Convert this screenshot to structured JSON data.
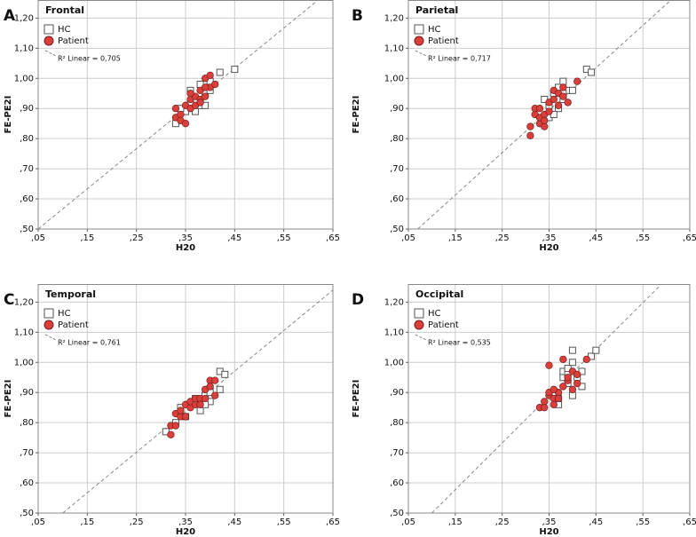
{
  "chart_data": [
    {
      "type": "scatter",
      "panel_label": "A",
      "title": "Frontal",
      "x_label": "H20",
      "y_label": "FE-PE2I",
      "annotation": "R² Linear = 0,705",
      "xlim": [
        0.05,
        0.65
      ],
      "ylim": [
        0.5,
        1.26
      ],
      "xticks": [
        {
          "value": 0.05,
          "label": ",05"
        },
        {
          "value": 0.15,
          "label": ",15"
        },
        {
          "value": 0.25,
          "label": ",25"
        },
        {
          "value": 0.35,
          "label": ",35"
        },
        {
          "value": 0.45,
          "label": ",45"
        },
        {
          "value": 0.55,
          "label": ",55"
        },
        {
          "value": 0.65,
          "label": ",65"
        }
      ],
      "yticks": [
        {
          "value": 0.5,
          "label": ",50"
        },
        {
          "value": 0.6,
          "label": ",60"
        },
        {
          "value": 0.7,
          "label": ",70"
        },
        {
          "value": 0.8,
          "label": ",80"
        },
        {
          "value": 0.9,
          "label": ",90"
        },
        {
          "value": 1.0,
          "label": "1,00"
        },
        {
          "value": 1.1,
          "label": "1,10"
        },
        {
          "value": 1.2,
          "label": "1,20"
        }
      ],
      "grid": true,
      "fit": {
        "x": [
          0.05,
          0.62
        ],
        "values": [
          0.5,
          1.26
        ]
      },
      "series": [
        {
          "name": "HC",
          "color": "#ffffff",
          "x": [
            0.33,
            0.35,
            0.36,
            0.37,
            0.37,
            0.38,
            0.38,
            0.39,
            0.39,
            0.4,
            0.4,
            0.42,
            0.45,
            0.36,
            0.34
          ],
          "values": [
            0.85,
            0.89,
            0.96,
            0.89,
            0.93,
            0.98,
            0.91,
            0.91,
            0.95,
            0.96,
            0.99,
            1.02,
            1.03,
            0.92,
            0.9
          ]
        },
        {
          "name": "Patient",
          "color": "#d9403c",
          "x": [
            0.33,
            0.33,
            0.34,
            0.34,
            0.35,
            0.35,
            0.36,
            0.36,
            0.37,
            0.37,
            0.38,
            0.38,
            0.39,
            0.39,
            0.4,
            0.4,
            0.41,
            0.38,
            0.36,
            0.39
          ],
          "values": [
            0.87,
            0.9,
            0.88,
            0.86,
            0.91,
            0.85,
            0.93,
            0.9,
            0.94,
            0.91,
            0.93,
            0.96,
            0.94,
            1.0,
            1.01,
            0.97,
            0.98,
            0.92,
            0.95,
            0.97
          ]
        }
      ]
    },
    {
      "type": "scatter",
      "panel_label": "B",
      "title": "Parietal",
      "x_label": "H20",
      "y_label": "FE-PE2I",
      "annotation": "R² Linear = 0,717",
      "xlim": [
        0.05,
        0.65
      ],
      "ylim": [
        0.5,
        1.26
      ],
      "xticks": [
        {
          "value": 0.05,
          "label": ",05"
        },
        {
          "value": 0.15,
          "label": ",15"
        },
        {
          "value": 0.25,
          "label": ",25"
        },
        {
          "value": 0.35,
          "label": ",35"
        },
        {
          "value": 0.45,
          "label": ",45"
        },
        {
          "value": 0.55,
          "label": ",55"
        },
        {
          "value": 0.65,
          "label": ",65"
        }
      ],
      "yticks": [
        {
          "value": 0.5,
          "label": ",50"
        },
        {
          "value": 0.6,
          "label": ",60"
        },
        {
          "value": 0.7,
          "label": ",70"
        },
        {
          "value": 0.8,
          "label": ",80"
        },
        {
          "value": 0.9,
          "label": ",90"
        },
        {
          "value": 1.0,
          "label": "1,00"
        },
        {
          "value": 1.1,
          "label": "1,10"
        },
        {
          "value": 1.2,
          "label": "1,20"
        }
      ],
      "grid": true,
      "fit": {
        "x": [
          0.07,
          0.61
        ],
        "values": [
          0.5,
          1.26
        ]
      },
      "series": [
        {
          "name": "HC",
          "color": "#ffffff",
          "x": [
            0.34,
            0.35,
            0.35,
            0.36,
            0.37,
            0.37,
            0.38,
            0.38,
            0.39,
            0.4,
            0.43,
            0.44,
            0.36,
            0.38
          ],
          "values": [
            0.93,
            0.91,
            0.87,
            0.95,
            0.9,
            0.97,
            0.93,
            0.99,
            0.96,
            0.96,
            1.03,
            1.02,
            0.88,
            0.95
          ]
        },
        {
          "name": "Patient",
          "color": "#d9403c",
          "x": [
            0.31,
            0.31,
            0.32,
            0.32,
            0.33,
            0.33,
            0.33,
            0.34,
            0.34,
            0.35,
            0.35,
            0.36,
            0.36,
            0.37,
            0.37,
            0.38,
            0.38,
            0.39,
            0.41,
            0.34
          ],
          "values": [
            0.81,
            0.84,
            0.88,
            0.9,
            0.85,
            0.87,
            0.9,
            0.88,
            0.84,
            0.89,
            0.92,
            0.93,
            0.96,
            0.91,
            0.95,
            0.94,
            0.97,
            0.92,
            0.99,
            0.86
          ]
        }
      ]
    },
    {
      "type": "scatter",
      "panel_label": "C",
      "title": "Temporal",
      "x_label": "H20",
      "y_label": "FE-PE2I",
      "annotation": "R² Linear = 0,761",
      "xlim": [
        0.05,
        0.65
      ],
      "ylim": [
        0.5,
        1.26
      ],
      "xticks": [
        {
          "value": 0.05,
          "label": ",05"
        },
        {
          "value": 0.15,
          "label": ",15"
        },
        {
          "value": 0.25,
          "label": ",25"
        },
        {
          "value": 0.35,
          "label": ",35"
        },
        {
          "value": 0.45,
          "label": ",45"
        },
        {
          "value": 0.55,
          "label": ",55"
        },
        {
          "value": 0.65,
          "label": ",65"
        }
      ],
      "yticks": [
        {
          "value": 0.5,
          "label": ",50"
        },
        {
          "value": 0.6,
          "label": ",60"
        },
        {
          "value": 0.7,
          "label": ",70"
        },
        {
          "value": 0.8,
          "label": ",80"
        },
        {
          "value": 0.9,
          "label": ",90"
        },
        {
          "value": 1.0,
          "label": "1,00"
        },
        {
          "value": 1.1,
          "label": "1,10"
        },
        {
          "value": 1.2,
          "label": "1,20"
        }
      ],
      "grid": true,
      "fit": {
        "x": [
          0.1,
          0.65
        ],
        "values": [
          0.5,
          1.24
        ]
      },
      "series": [
        {
          "name": "HC",
          "color": "#ffffff",
          "x": [
            0.31,
            0.33,
            0.34,
            0.35,
            0.36,
            0.37,
            0.38,
            0.39,
            0.4,
            0.4,
            0.42,
            0.42,
            0.43,
            0.39
          ],
          "values": [
            0.77,
            0.8,
            0.85,
            0.82,
            0.86,
            0.88,
            0.84,
            0.89,
            0.87,
            0.9,
            0.91,
            0.97,
            0.96,
            0.86
          ]
        },
        {
          "name": "Patient",
          "color": "#d9403c",
          "x": [
            0.32,
            0.32,
            0.33,
            0.34,
            0.34,
            0.35,
            0.35,
            0.36,
            0.36,
            0.37,
            0.37,
            0.38,
            0.38,
            0.39,
            0.39,
            0.4,
            0.4,
            0.41,
            0.41,
            0.33
          ],
          "values": [
            0.79,
            0.76,
            0.83,
            0.82,
            0.84,
            0.86,
            0.82,
            0.85,
            0.87,
            0.86,
            0.88,
            0.88,
            0.86,
            0.91,
            0.88,
            0.94,
            0.92,
            0.94,
            0.89,
            0.79
          ]
        }
      ]
    },
    {
      "type": "scatter",
      "panel_label": "D",
      "title": "Occipital",
      "x_label": "H20",
      "y_label": "FE-PE2I",
      "annotation": "R² Linear = 0,535",
      "xlim": [
        0.05,
        0.65
      ],
      "ylim": [
        0.5,
        1.26
      ],
      "xticks": [
        {
          "value": 0.05,
          "label": ",05"
        },
        {
          "value": 0.15,
          "label": ",15"
        },
        {
          "value": 0.25,
          "label": ",25"
        },
        {
          "value": 0.35,
          "label": ",35"
        },
        {
          "value": 0.45,
          "label": ",45"
        },
        {
          "value": 0.55,
          "label": ",55"
        },
        {
          "value": 0.65,
          "label": ",65"
        }
      ],
      "yticks": [
        {
          "value": 0.5,
          "label": ",50"
        },
        {
          "value": 0.6,
          "label": ",60"
        },
        {
          "value": 0.7,
          "label": ",70"
        },
        {
          "value": 0.8,
          "label": ",80"
        },
        {
          "value": 0.9,
          "label": ",90"
        },
        {
          "value": 1.0,
          "label": "1,00"
        },
        {
          "value": 1.1,
          "label": "1,10"
        },
        {
          "value": 1.2,
          "label": "1,20"
        }
      ],
      "grid": true,
      "fit": {
        "x": [
          0.1,
          0.59
        ],
        "values": [
          0.5,
          1.26
        ]
      },
      "series": [
        {
          "name": "HC",
          "color": "#ffffff",
          "x": [
            0.37,
            0.37,
            0.38,
            0.38,
            0.39,
            0.39,
            0.4,
            0.4,
            0.4,
            0.41,
            0.42,
            0.42,
            0.44,
            0.45,
            0.39
          ],
          "values": [
            0.86,
            0.88,
            0.95,
            0.97,
            0.93,
            0.96,
            1.0,
            1.04,
            0.89,
            0.95,
            0.92,
            0.97,
            1.02,
            1.04,
            0.98
          ]
        },
        {
          "name": "Patient",
          "color": "#d9403c",
          "x": [
            0.33,
            0.34,
            0.34,
            0.35,
            0.35,
            0.35,
            0.36,
            0.36,
            0.37,
            0.37,
            0.38,
            0.38,
            0.39,
            0.4,
            0.4,
            0.41,
            0.41,
            0.43,
            0.36,
            0.39
          ],
          "values": [
            0.85,
            0.87,
            0.85,
            0.89,
            0.9,
            0.99,
            0.88,
            0.86,
            0.9,
            0.88,
            0.92,
            1.01,
            0.94,
            0.91,
            0.97,
            0.96,
            0.93,
            1.01,
            0.91,
            0.95
          ]
        }
      ]
    }
  ]
}
